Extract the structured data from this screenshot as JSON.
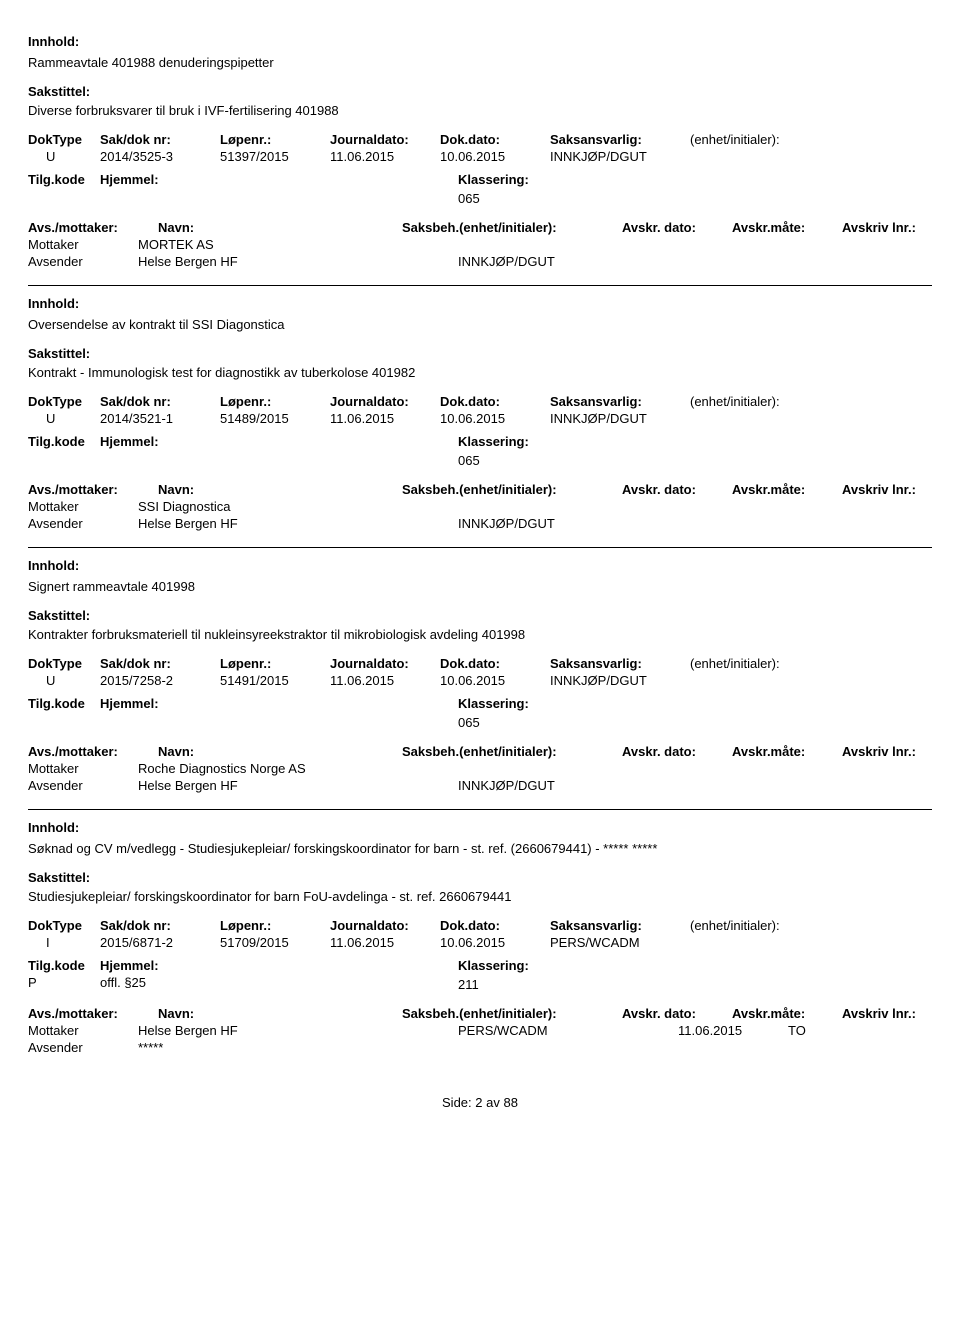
{
  "labels": {
    "innhold": "Innhold:",
    "sakstittel": "Sakstittel:",
    "doktype": "DokType",
    "sakdok": "Sak/dok nr:",
    "lopenr": "Løpenr.:",
    "journaldato": "Journaldato:",
    "dokdato": "Dok.dato:",
    "saksansvarlig": "Saksansvarlig:",
    "enhet": "(enhet/initialer):",
    "tilgkode": "Tilg.kode",
    "hjemmel": "Hjemmel:",
    "klassering": "Klassering:",
    "avsmottaker": "Avs./mottaker:",
    "navn": "Navn:",
    "saksbeh": "Saksbeh.(enhet/initialer):",
    "avskrdato": "Avskr. dato:",
    "avskrmate": "Avskr.måte:",
    "avskrlnr": "Avskriv lnr.:",
    "mottaker": "Mottaker",
    "avsender": "Avsender"
  },
  "records": [
    {
      "innhold": "Rammeavtale 401988 denuderingspipetter",
      "sakstittel": "Diverse forbruksvarer til bruk i IVF-fertilisering 401988",
      "doktype": "U",
      "sakdok": "2014/3525-3",
      "lopenr": "51397/2015",
      "jdato": "11.06.2015",
      "ddato": "10.06.2015",
      "saksans": "INNKJØP/DGUT",
      "tilgkode": "",
      "hjemmel": "",
      "klassering": "065",
      "parties": [
        {
          "role": "Mottaker",
          "name": "MORTEK AS",
          "dept": "",
          "date": "",
          "mate": ""
        },
        {
          "role": "Avsender",
          "name": "Helse Bergen HF",
          "dept": "INNKJØP/DGUT",
          "date": "",
          "mate": ""
        }
      ]
    },
    {
      "innhold": "Oversendelse av kontrakt til SSI Diagonstica",
      "sakstittel": "Kontrakt - Immunologisk test for diagnostikk av tuberkolose 401982",
      "doktype": "U",
      "sakdok": "2014/3521-1",
      "lopenr": "51489/2015",
      "jdato": "11.06.2015",
      "ddato": "10.06.2015",
      "saksans": "INNKJØP/DGUT",
      "tilgkode": "",
      "hjemmel": "",
      "klassering": "065",
      "parties": [
        {
          "role": "Mottaker",
          "name": "SSI Diagnostica",
          "dept": "",
          "date": "",
          "mate": ""
        },
        {
          "role": "Avsender",
          "name": "Helse Bergen HF",
          "dept": "INNKJØP/DGUT",
          "date": "",
          "mate": ""
        }
      ]
    },
    {
      "innhold": "Signert rammeavtale 401998",
      "sakstittel": "Kontrakter forbruksmateriell til nukleinsyreekstraktor til mikrobiologisk avdeling 401998",
      "doktype": "U",
      "sakdok": "2015/7258-2",
      "lopenr": "51491/2015",
      "jdato": "11.06.2015",
      "ddato": "10.06.2015",
      "saksans": "INNKJØP/DGUT",
      "tilgkode": "",
      "hjemmel": "",
      "klassering": "065",
      "parties": [
        {
          "role": "Mottaker",
          "name": "Roche Diagnostics Norge AS",
          "dept": "",
          "date": "",
          "mate": ""
        },
        {
          "role": "Avsender",
          "name": "Helse Bergen HF",
          "dept": "INNKJØP/DGUT",
          "date": "",
          "mate": ""
        }
      ]
    },
    {
      "innhold": "Søknad og CV m/vedlegg - Studiesjukepleiar/ forskingskoordinator for barn - st. ref. (2660679441) - ***** *****",
      "sakstittel": "Studiesjukepleiar/ forskingskoordinator for barn FoU-avdelinga - st. ref. 2660679441",
      "doktype": "I",
      "sakdok": "2015/6871-2",
      "lopenr": "51709/2015",
      "jdato": "11.06.2015",
      "ddato": "10.06.2015",
      "saksans": "PERS/WCADM",
      "tilgkode": "P",
      "hjemmel": "offl. §25",
      "klassering": "211",
      "parties": [
        {
          "role": "Mottaker",
          "name": "Helse Bergen HF",
          "dept": "PERS/WCADM",
          "date": "11.06.2015",
          "mate": "TO"
        },
        {
          "role": "Avsender",
          "name": "*****",
          "dept": "",
          "date": "",
          "mate": ""
        }
      ]
    }
  ],
  "footer": {
    "prefix": "Side:",
    "current": "2",
    "sep": "av",
    "total": "88"
  }
}
